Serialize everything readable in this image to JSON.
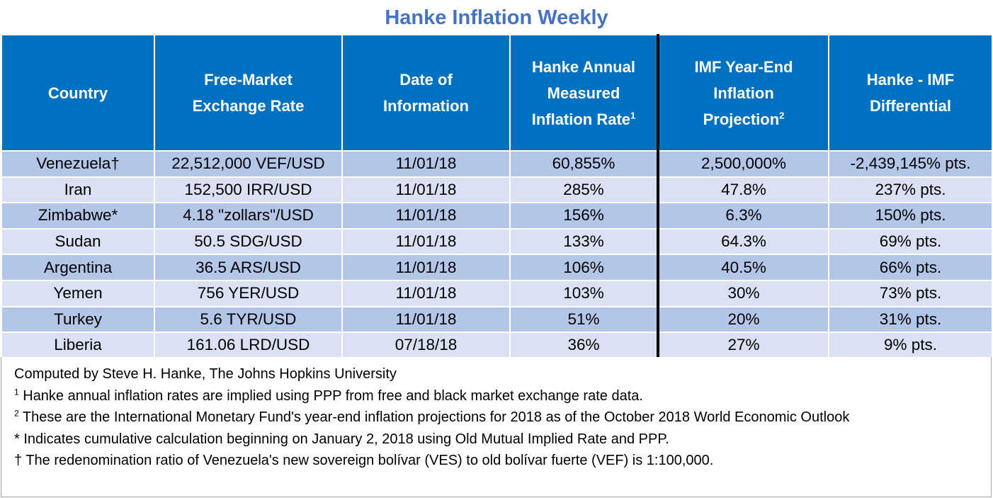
{
  "title": "Hanke Inflation Weekly",
  "chart_data": {
    "type": "table",
    "columns": [
      {
        "lines": [
          "Country"
        ],
        "sup": ""
      },
      {
        "lines": [
          "Free-Market",
          "Exchange Rate"
        ],
        "sup": ""
      },
      {
        "lines": [
          "Date of",
          "Information"
        ],
        "sup": ""
      },
      {
        "lines": [
          "Hanke Annual",
          "Measured",
          "Inflation Rate"
        ],
        "sup": "1"
      },
      {
        "lines": [
          "IMF Year-End",
          "Inflation",
          "Projection"
        ],
        "sup": "2"
      },
      {
        "lines": [
          "Hanke - IMF",
          "Differential"
        ],
        "sup": ""
      }
    ],
    "rows": [
      [
        "Venezuela†",
        "22,512,000 VEF/USD",
        "11/01/18",
        "60,855%",
        "2,500,000%",
        "-2,439,145% pts."
      ],
      [
        "Iran",
        "152,500 IRR/USD",
        "11/01/18",
        "285%",
        "47.8%",
        "237% pts."
      ],
      [
        "Zimbabwe*",
        "4.18 \"zollars\"/USD",
        "11/01/18",
        "156%",
        "6.3%",
        "150% pts."
      ],
      [
        "Sudan",
        "50.5 SDG/USD",
        "11/01/18",
        "133%",
        "64.3%",
        "69% pts."
      ],
      [
        "Argentina",
        "36.5 ARS/USD",
        "11/01/18",
        "106%",
        "40.5%",
        "66% pts."
      ],
      [
        "Yemen",
        "756 YER/USD",
        "11/01/18",
        "103%",
        "30%",
        "73% pts."
      ],
      [
        "Turkey",
        "5.6 TYR/USD",
        "11/01/18",
        "51%",
        "20%",
        "31% pts."
      ],
      [
        "Liberia",
        "161.06 LRD/USD",
        "07/18/18",
        "36%",
        "27%",
        "9% pts."
      ]
    ],
    "colors": {
      "header": "#0070c0",
      "row_even": "#b4c6e7",
      "row_odd": "#d9e1f2",
      "title": "#4472c4"
    }
  },
  "notes": [
    {
      "sup": "",
      "text": "Computed by Steve H. Hanke, The Johns Hopkins University"
    },
    {
      "sup": "1",
      "text": " Hanke annual inflation rates are implied using PPP from free and black market exchange rate data."
    },
    {
      "sup": "2",
      "text": " These are the International Monetary Fund's year-end inflation projections for 2018 as of the October 2018 World Economic Outlook"
    },
    {
      "sup": "",
      "text": "* Indicates cumulative calculation beginning on January 2, 2018 using Old Mutual Implied Rate and PPP."
    },
    {
      "sup": "",
      "text": "† The redenomination ratio of Venezuela's new sovereign bolívar (VES) to old bolívar fuerte (VEF) is 1:100,000."
    }
  ]
}
